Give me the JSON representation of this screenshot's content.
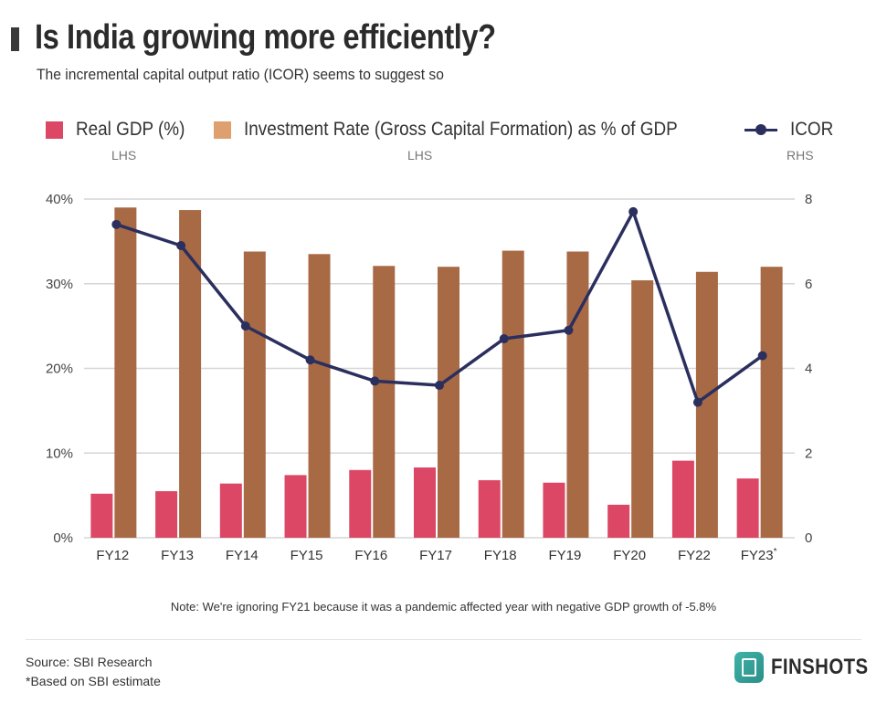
{
  "header": {
    "title": "Is India growing more efficiently?",
    "subtitle": "The incremental capital output ratio (ICOR) seems to suggest so"
  },
  "legend": {
    "gdp_label": "Real GDP (%)",
    "investment_label": "Investment Rate (Gross Capital Formation) as % of GDP",
    "icor_label": "ICOR",
    "gdp_side": "LHS",
    "investment_side": "LHS",
    "icor_side": "RHS"
  },
  "footer": {
    "note": "Note: We're ignoring FY21 because it was a pandemic affected year with negative GDP growth of -5.8%",
    "source": "Source: SBI Research",
    "footnote": "*Based on SBI estimate",
    "brand": "FINSHOTS"
  },
  "colors": {
    "gdp": "#dc4766",
    "investment": "#a86a45",
    "investment_legend": "#dea06e",
    "icor": "#2b2f5e",
    "grid": "#d6d6d6"
  },
  "icons": {
    "brand_logo": "finshots-bookmark-icon"
  },
  "chart_data": {
    "type": "bar",
    "categories": [
      "FY12",
      "FY13",
      "FY14",
      "FY15",
      "FY16",
      "FY17",
      "FY18",
      "FY19",
      "FY20",
      "FY22",
      "FY23*"
    ],
    "series": [
      {
        "name": "Real GDP (%)",
        "type": "bar",
        "axis": "left",
        "values": [
          5.2,
          5.5,
          6.4,
          7.4,
          8.0,
          8.3,
          6.8,
          6.5,
          3.9,
          9.1,
          7.0
        ]
      },
      {
        "name": "Investment Rate (Gross Capital Formation) as % of GDP",
        "type": "bar",
        "axis": "left",
        "values": [
          39.0,
          38.7,
          33.8,
          33.5,
          32.1,
          32.0,
          33.9,
          33.8,
          30.4,
          31.4,
          32.0
        ]
      },
      {
        "name": "ICOR",
        "type": "line",
        "axis": "right",
        "values": [
          7.4,
          6.9,
          5.0,
          4.2,
          3.7,
          3.6,
          4.7,
          4.9,
          7.7,
          3.2,
          4.3
        ]
      }
    ],
    "y_left": {
      "ylim": [
        0,
        40
      ],
      "ticks": [
        0,
        10,
        20,
        30,
        40
      ],
      "tick_labels": [
        "0%",
        "10%",
        "20%",
        "30%",
        "40%"
      ]
    },
    "y_right": {
      "ylim": [
        0,
        8
      ],
      "ticks": [
        0,
        2,
        4,
        6,
        8
      ],
      "tick_labels": [
        "0",
        "2",
        "4",
        "6",
        "8"
      ]
    },
    "grid": true,
    "legend_position": "top"
  }
}
